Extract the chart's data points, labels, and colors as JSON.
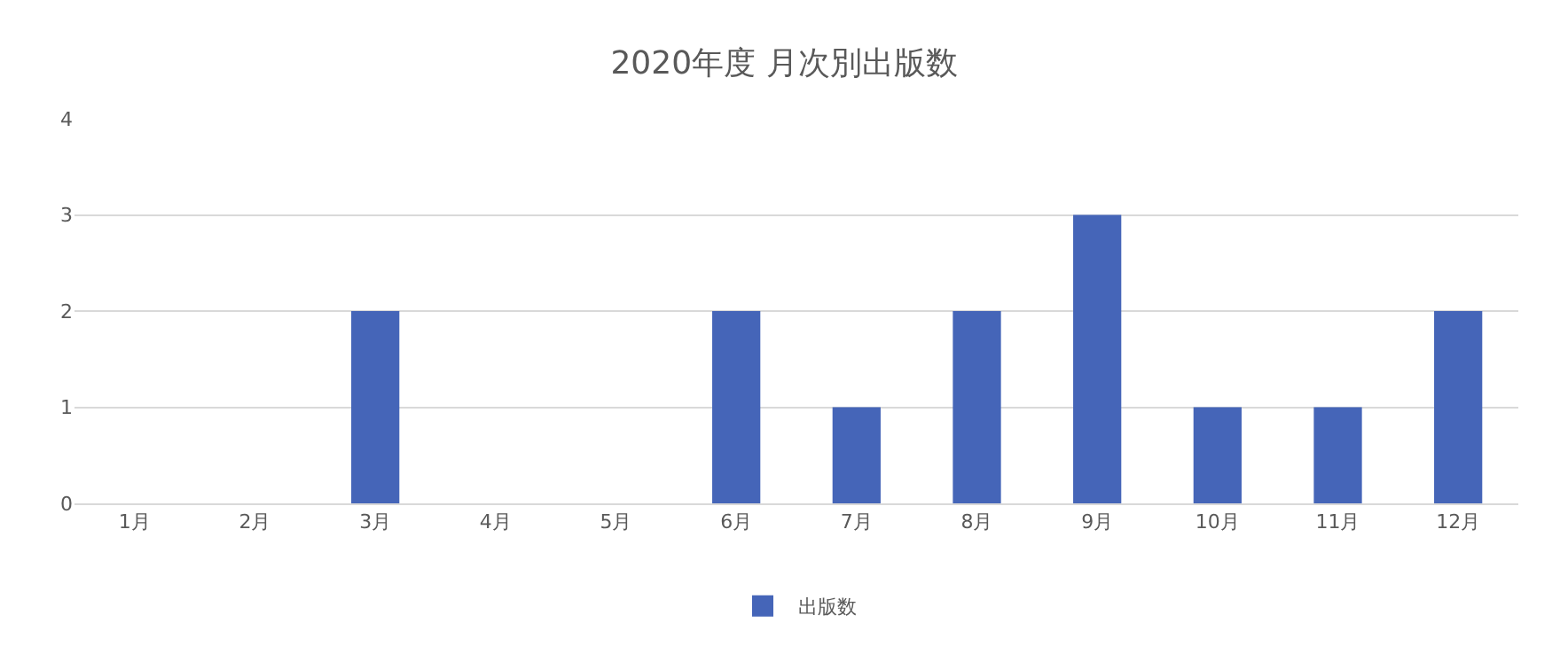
{
  "chart_data": {
    "type": "bar",
    "title": "2020年度 月次別出版数",
    "categories": [
      "1月",
      "2月",
      "3月",
      "4月",
      "5月",
      "6月",
      "7月",
      "8月",
      "9月",
      "10月",
      "11月",
      "12月"
    ],
    "series": [
      {
        "name": "出版数",
        "color": "#4565b8",
        "values": [
          0,
          0,
          2,
          0,
          0,
          2,
          1,
          2,
          3,
          1,
          1,
          2
        ]
      }
    ],
    "ylim": [
      0,
      4
    ],
    "yticks": [
      0,
      1,
      2,
      3,
      4
    ],
    "grid": "y",
    "legend": "bottom"
  }
}
